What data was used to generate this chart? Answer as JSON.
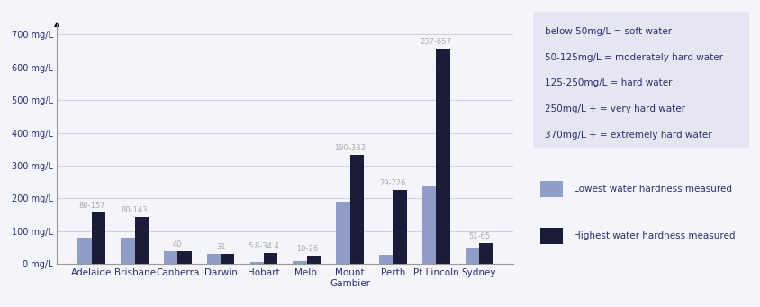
{
  "categories": [
    "Adelaide",
    "Brisbane",
    "Canberra",
    "Darwin",
    "Hobart",
    "Melb.",
    "Mount\nGambier",
    "Perth",
    "Pt Lincoln",
    "Sydney"
  ],
  "lowest": [
    80,
    80,
    40,
    31,
    5.8,
    10,
    190,
    29,
    237,
    51
  ],
  "highest": [
    157,
    143,
    40,
    31,
    34.4,
    26,
    333,
    226,
    657,
    65
  ],
  "range_labels": [
    "80-157",
    "80-143",
    "40",
    "31",
    "5.8-34.4",
    "10-26",
    "190-333",
    "29-226",
    "237-657",
    "51-65"
  ],
  "color_low": "#8f9dc7",
  "color_high": "#1c1c3a",
  "bg_color": "#f4f4fb",
  "info_box_color": "#e6e6f2",
  "ytick_labels": [
    "0 mg/L",
    "100 mg/L",
    "200 mg/L",
    "300 mg/L",
    "400 mg/L",
    "500 mg/L",
    "600 mg/L",
    "700 mg/L"
  ],
  "ytick_values": [
    0,
    100,
    200,
    300,
    400,
    500,
    600,
    700
  ],
  "ylim": [
    0,
    730
  ],
  "info_lines": [
    "below 50mg/L = soft water",
    "50-125mg/L = moderately hard water",
    "125-250mg/L = hard water",
    "250mg/L + = very hard water",
    "370mg/L + = extremely hard water"
  ],
  "legend_low": "Lowest water hardness measured",
  "legend_high": "Highest water hardness measured",
  "range_label_color": "#aaaaaa",
  "grid_color": "#d0d0e0",
  "text_color": "#2d2d6b",
  "axis_line_color": "#999999"
}
